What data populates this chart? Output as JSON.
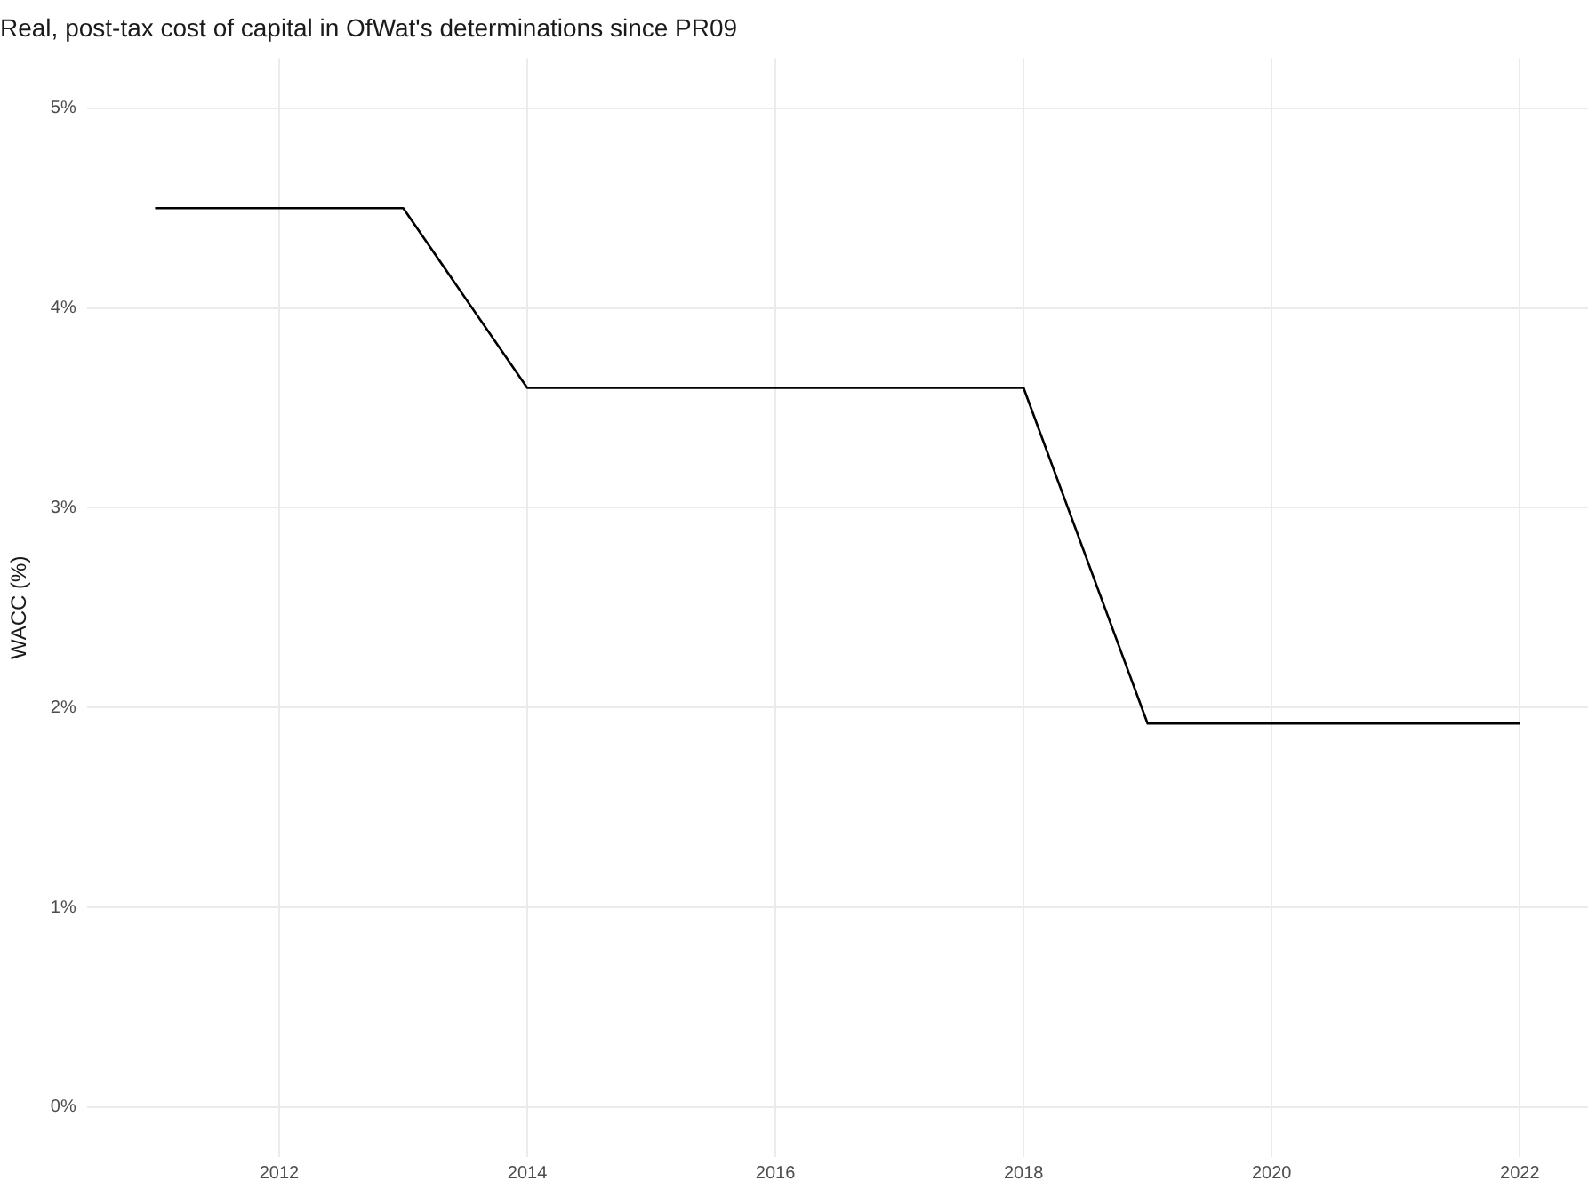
{
  "chart_data": {
    "type": "line",
    "title": "Real, post-tax cost of capital in OfWat's determinations since PR09",
    "ylabel": "WACC (%)",
    "x": [
      2011,
      2013,
      2014,
      2018,
      2019,
      2022
    ],
    "series": [
      {
        "color": "#000000",
        "values": [
          4.5,
          4.5,
          3.6,
          3.6,
          1.92,
          1.92
        ]
      }
    ],
    "xlim": [
      2010.45,
      2022.55
    ],
    "xticks": [
      2012,
      2014,
      2016,
      2018,
      2020,
      2022
    ],
    "ylim": [
      -0.25,
      5.25
    ],
    "yticks": [
      {
        "value": 0,
        "label": "0%"
      },
      {
        "value": 1,
        "label": "1%"
      },
      {
        "value": 2,
        "label": "2%"
      },
      {
        "value": 3,
        "label": "3%"
      },
      {
        "value": 4,
        "label": "4%"
      },
      {
        "value": 5,
        "label": "5%"
      }
    ],
    "grid": true,
    "legend": false,
    "marker": "none",
    "line_style": "solid"
  }
}
